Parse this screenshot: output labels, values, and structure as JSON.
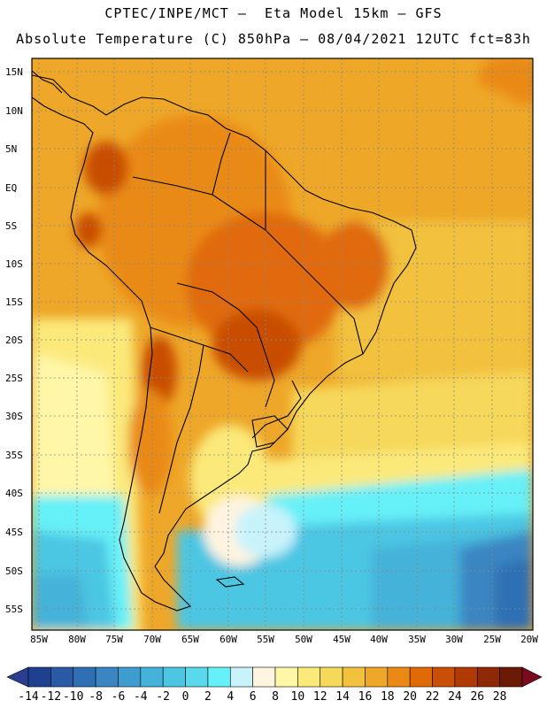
{
  "title": {
    "line1": "CPTEC/INPE/MCT –  Eta Model 15km – GFS",
    "line2": "Absolute Temperature (C) 850hPa – 08/04/2021 12UTC fct=83h"
  },
  "lat_labels": [
    "15N",
    "10N",
    "5N",
    "EQ",
    "5S",
    "10S",
    "15S",
    "20S",
    "25S",
    "30S",
    "35S",
    "40S",
    "45S",
    "50S",
    "55S"
  ],
  "lon_labels": [
    "85W",
    "80W",
    "75W",
    "70W",
    "65W",
    "60W",
    "55W",
    "50W",
    "45W",
    "40W",
    "35W",
    "30W",
    "25W",
    "20W"
  ],
  "colorbar": {
    "labels": [
      "-14",
      "-12",
      "-10",
      "-8",
      "-6",
      "-4",
      "-2",
      "0",
      "2",
      "4",
      "6",
      "8",
      "10",
      "12",
      "14",
      "16",
      "18",
      "20",
      "22",
      "24",
      "26",
      "28"
    ],
    "colors": [
      "#1f3f8f",
      "#2a5aa6",
      "#2f6fb4",
      "#3a85c2",
      "#3f9ccf",
      "#44b2d9",
      "#4cc6e3",
      "#5ad8ec",
      "#66f0f8",
      "#c8f3fb",
      "#fff4e0",
      "#fff7a8",
      "#fbe97a",
      "#f6d85a",
      "#f2c13e",
      "#eea728",
      "#ea8a14",
      "#e06a08",
      "#c94e06",
      "#b03a06",
      "#8f2806",
      "#6b1b05"
    ]
  }
}
